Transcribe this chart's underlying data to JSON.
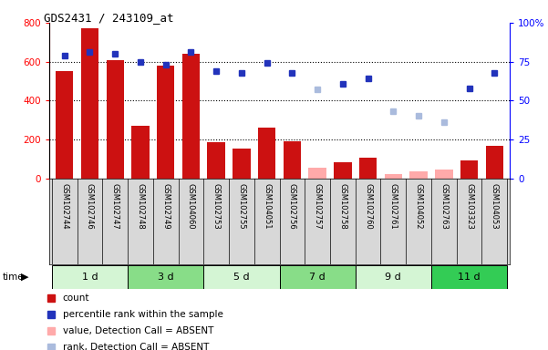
{
  "title": "GDS2431 / 243109_at",
  "samples": [
    "GSM102744",
    "GSM102746",
    "GSM102747",
    "GSM102748",
    "GSM102749",
    "GSM104060",
    "GSM102753",
    "GSM102755",
    "GSM104051",
    "GSM102756",
    "GSM102757",
    "GSM102758",
    "GSM102760",
    "GSM102761",
    "GSM104052",
    "GSM102763",
    "GSM103323",
    "GSM104053"
  ],
  "groups": [
    {
      "label": "1 d",
      "indices": [
        0,
        1,
        2
      ],
      "color": "#d4f5d4"
    },
    {
      "label": "3 d",
      "indices": [
        3,
        4,
        5
      ],
      "color": "#88dd88"
    },
    {
      "label": "5 d",
      "indices": [
        6,
        7,
        8
      ],
      "color": "#d4f5d4"
    },
    {
      "label": "7 d",
      "indices": [
        9,
        10,
        11
      ],
      "color": "#88dd88"
    },
    {
      "label": "9 d",
      "indices": [
        12,
        13,
        14
      ],
      "color": "#d4f5d4"
    },
    {
      "label": "11 d",
      "indices": [
        15,
        16,
        17
      ],
      "color": "#33cc55"
    }
  ],
  "count_values": [
    550,
    770,
    610,
    270,
    580,
    640,
    185,
    155,
    260,
    190,
    55,
    85,
    105,
    25,
    35,
    45,
    95,
    170
  ],
  "count_absent": [
    false,
    false,
    false,
    false,
    false,
    false,
    false,
    false,
    false,
    false,
    true,
    false,
    false,
    true,
    true,
    true,
    false,
    false
  ],
  "percentile_values": [
    79,
    81,
    80,
    75,
    73,
    81,
    69,
    68,
    74,
    68,
    57,
    61,
    64,
    43,
    40,
    36,
    58,
    68
  ],
  "percentile_absent": [
    false,
    false,
    false,
    false,
    false,
    false,
    false,
    false,
    false,
    false,
    true,
    false,
    false,
    true,
    true,
    true,
    false,
    false
  ],
  "ylim_left": [
    0,
    800
  ],
  "ylim_right": [
    0,
    100
  ],
  "yticks_left": [
    0,
    200,
    400,
    600,
    800
  ],
  "yticks_right": [
    0,
    25,
    50,
    75,
    100
  ],
  "yticklabels_right": [
    "0",
    "25",
    "50",
    "75",
    "100%"
  ],
  "bar_color_present": "#cc1111",
  "bar_color_absent": "#ffaaaa",
  "square_color_present": "#2233bb",
  "square_color_absent": "#aabbdd",
  "legend_items": [
    {
      "color": "#cc1111",
      "label": "count"
    },
    {
      "color": "#2233bb",
      "label": "percentile rank within the sample"
    },
    {
      "color": "#ffaaaa",
      "label": "value, Detection Call = ABSENT"
    },
    {
      "color": "#aabbdd",
      "label": "rank, Detection Call = ABSENT"
    }
  ]
}
